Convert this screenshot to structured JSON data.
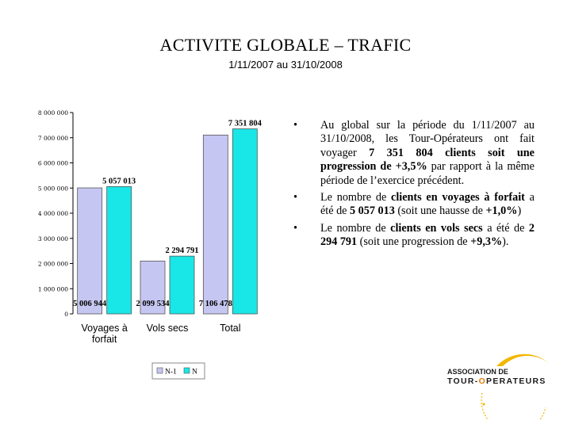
{
  "slide": {
    "title": "ACTIVITE GLOBALE – TRAFIC",
    "subtitle": "1/11/2007 au 31/10/2008"
  },
  "bullets": [
    [
      {
        "t": "Au global sur la période du 1/11/2007 au 31/10/2008, les Tour-Opérateurs ont fait voyager ",
        "b": false
      },
      {
        "t": "7 351 804 clients soit une progression de +3,5%",
        "b": true
      },
      {
        "t": " par rapport à la même période de l’exercice précédent.",
        "b": false
      }
    ],
    [
      {
        "t": "Le nombre de ",
        "b": false
      },
      {
        "t": "clients en voyages à forfait",
        "b": true
      },
      {
        "t": " a été de ",
        "b": false
      },
      {
        "t": "5 057 013",
        "b": true
      },
      {
        "t": " (soit une hausse de ",
        "b": false
      },
      {
        "t": "+1,0%",
        "b": true
      },
      {
        "t": ")",
        "b": false
      }
    ],
    [
      {
        "t": "Le nombre de ",
        "b": false
      },
      {
        "t": "clients en vols secs",
        "b": true
      },
      {
        "t": " a été de ",
        "b": false
      },
      {
        "t": "2 294 791",
        "b": true
      },
      {
        "t": " (soit une progression de ",
        "b": false
      },
      {
        "t": "+9,3%",
        "b": true
      },
      {
        "t": ").",
        "b": false
      }
    ]
  ],
  "logo": {
    "line1": "ASSOCIATION DE",
    "line2a": "TOUR-",
    "line2b": "O",
    "line2c": "PERATEURS",
    "accent_color": "#f2b700",
    "text_color": "#1a1a1a",
    "accent_text_color": "#e07b00"
  },
  "chart_data": {
    "type": "bar",
    "categories": [
      "Voyages à\nforfait",
      "Vols secs",
      "Total"
    ],
    "series": [
      {
        "name": "N-1",
        "values": [
          5006944,
          2099534,
          7106478
        ],
        "color": "#c6c6f2",
        "labels": [
          "5 006 944",
          "2 099 534",
          "7 106 478"
        ],
        "label_position": "base"
      },
      {
        "name": "N",
        "values": [
          5057013,
          2294791,
          7351804
        ],
        "color": "#19e6e6",
        "labels": [
          "5 057 013",
          "2 294 791",
          "7 351 804"
        ],
        "label_position": "top"
      }
    ],
    "yticks": [
      "0",
      "1 000 000",
      "2 000 000",
      "3 000 000",
      "4 000 000",
      "5 000 000",
      "6 000 000",
      "7 000 000",
      "8 000 000"
    ],
    "ylim": [
      0,
      8000000
    ],
    "legend_placement": "bottom-center",
    "legend_labels": [
      "N-1",
      "N"
    ],
    "grid": false
  }
}
